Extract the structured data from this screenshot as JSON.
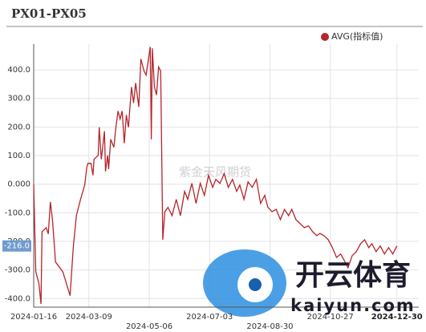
{
  "chart_data": {
    "type": "line",
    "title": "PX01-PX05",
    "x": [
      "2024-01-16",
      "2024-01-18",
      "2024-01-21",
      "2024-01-23",
      "2024-01-24",
      "2024-01-28",
      "2024-01-30",
      "2024-02-01",
      "2024-02-03",
      "2024-02-06",
      "2024-02-13",
      "2024-02-20",
      "2024-02-23",
      "2024-02-26",
      "2024-03-01",
      "2024-03-05",
      "2024-03-07",
      "2024-03-08",
      "2024-03-11",
      "2024-03-13",
      "2024-03-14",
      "2024-03-18",
      "2024-03-19",
      "2024-03-21",
      "2024-03-24",
      "2024-03-25",
      "2024-03-27",
      "2024-03-28",
      "2024-03-30",
      "2024-04-02",
      "2024-04-04",
      "2024-04-06",
      "2024-04-08",
      "2024-04-10",
      "2024-04-12",
      "2024-04-14",
      "2024-04-16",
      "2024-04-19",
      "2024-04-21",
      "2024-04-23",
      "2024-04-26",
      "2024-04-28",
      "2024-05-01",
      "2024-05-03",
      "2024-05-07",
      "2024-05-08",
      "2024-05-09",
      "2024-05-11",
      "2024-05-13",
      "2024-05-15",
      "2024-05-17",
      "2024-05-19",
      "2024-05-21",
      "2024-05-24",
      "2024-05-28",
      "2024-06-01",
      "2024-06-05",
      "2024-06-09",
      "2024-06-12",
      "2024-06-16",
      "2024-06-20",
      "2024-06-24",
      "2024-06-28",
      "2024-07-02",
      "2024-07-06",
      "2024-07-09",
      "2024-07-13",
      "2024-07-17",
      "2024-07-21",
      "2024-07-25",
      "2024-07-29",
      "2024-08-01",
      "2024-08-05",
      "2024-08-09",
      "2024-08-13",
      "2024-08-17",
      "2024-08-21",
      "2024-08-25",
      "2024-08-28",
      "2024-09-01",
      "2024-09-05",
      "2024-09-09",
      "2024-09-13",
      "2024-09-17",
      "2024-09-20",
      "2024-09-24",
      "2024-09-28",
      "2024-10-02",
      "2024-10-06",
      "2024-10-10",
      "2024-10-14",
      "2024-10-17",
      "2024-10-21",
      "2024-10-25",
      "2024-10-29",
      "2024-11-02",
      "2024-11-06",
      "2024-11-09",
      "2024-11-13",
      "2024-11-17",
      "2024-11-21",
      "2024-11-25",
      "2024-11-29",
      "2024-12-03",
      "2024-12-06",
      "2024-12-10",
      "2024-12-14",
      "2024-12-18",
      "2024-12-22",
      "2024-12-26",
      "2024-12-30"
    ],
    "series": [
      {
        "name": "AVG(指标值)",
        "color": "#b5252b",
        "values": [
          0,
          -306,
          -348,
          -419,
          -166,
          -152,
          -174,
          -62,
          -124,
          -272,
          -306,
          -390,
          -222,
          -110,
          -53,
          -3,
          59,
          73,
          73,
          31,
          87,
          101,
          199,
          87,
          185,
          45,
          101,
          53,
          157,
          129,
          199,
          256,
          228,
          256,
          143,
          242,
          199,
          340,
          284,
          354,
          270,
          438,
          396,
          382,
          480,
          157,
          475,
          340,
          312,
          410,
          396,
          -194,
          -96,
          -81,
          -110,
          -53,
          -110,
          -25,
          -53,
          3,
          -67,
          3,
          -39,
          31,
          -11,
          17,
          3,
          37,
          -11,
          17,
          -25,
          -3,
          -53,
          8,
          -11,
          17,
          -67,
          -39,
          -81,
          -96,
          -88,
          -124,
          -88,
          -110,
          -88,
          -124,
          -138,
          -152,
          -146,
          -166,
          -180,
          -172,
          -180,
          -194,
          -222,
          -256,
          -244,
          -264,
          -292,
          -250,
          -236,
          -208,
          -194,
          -222,
          -208,
          -236,
          -216,
          -244,
          -222,
          -244,
          -216
        ]
      }
    ],
    "xlim": [
      "2024-01-16",
      "2025-01-20"
    ],
    "xticks": [
      "2024-01-16",
      "2024-03-09",
      "2024-05-06",
      "2024-07-03",
      "2024-08-30",
      "2024-10-27",
      "2024-12-30"
    ],
    "ylim": [
      -430,
      490
    ],
    "yticks": [
      {
        "value": -400,
        "label": "-400.0"
      },
      {
        "value": -300,
        "label": "-300.0"
      },
      {
        "value": -200,
        "label": "-200.0"
      },
      {
        "value": -100,
        "label": "-100.0"
      },
      {
        "value": 0,
        "label": "0.000"
      },
      {
        "value": 100,
        "label": "100.0"
      },
      {
        "value": 200,
        "label": "200.0"
      },
      {
        "value": 300,
        "label": "300.0"
      },
      {
        "value": 400,
        "label": "400.0"
      }
    ],
    "last_value_label": {
      "value": -216,
      "label": "-216.0"
    },
    "grid": true,
    "watermark": "紫金天风期货",
    "logo_text": "开云体育",
    "logo_url": "kaiyun.com"
  }
}
